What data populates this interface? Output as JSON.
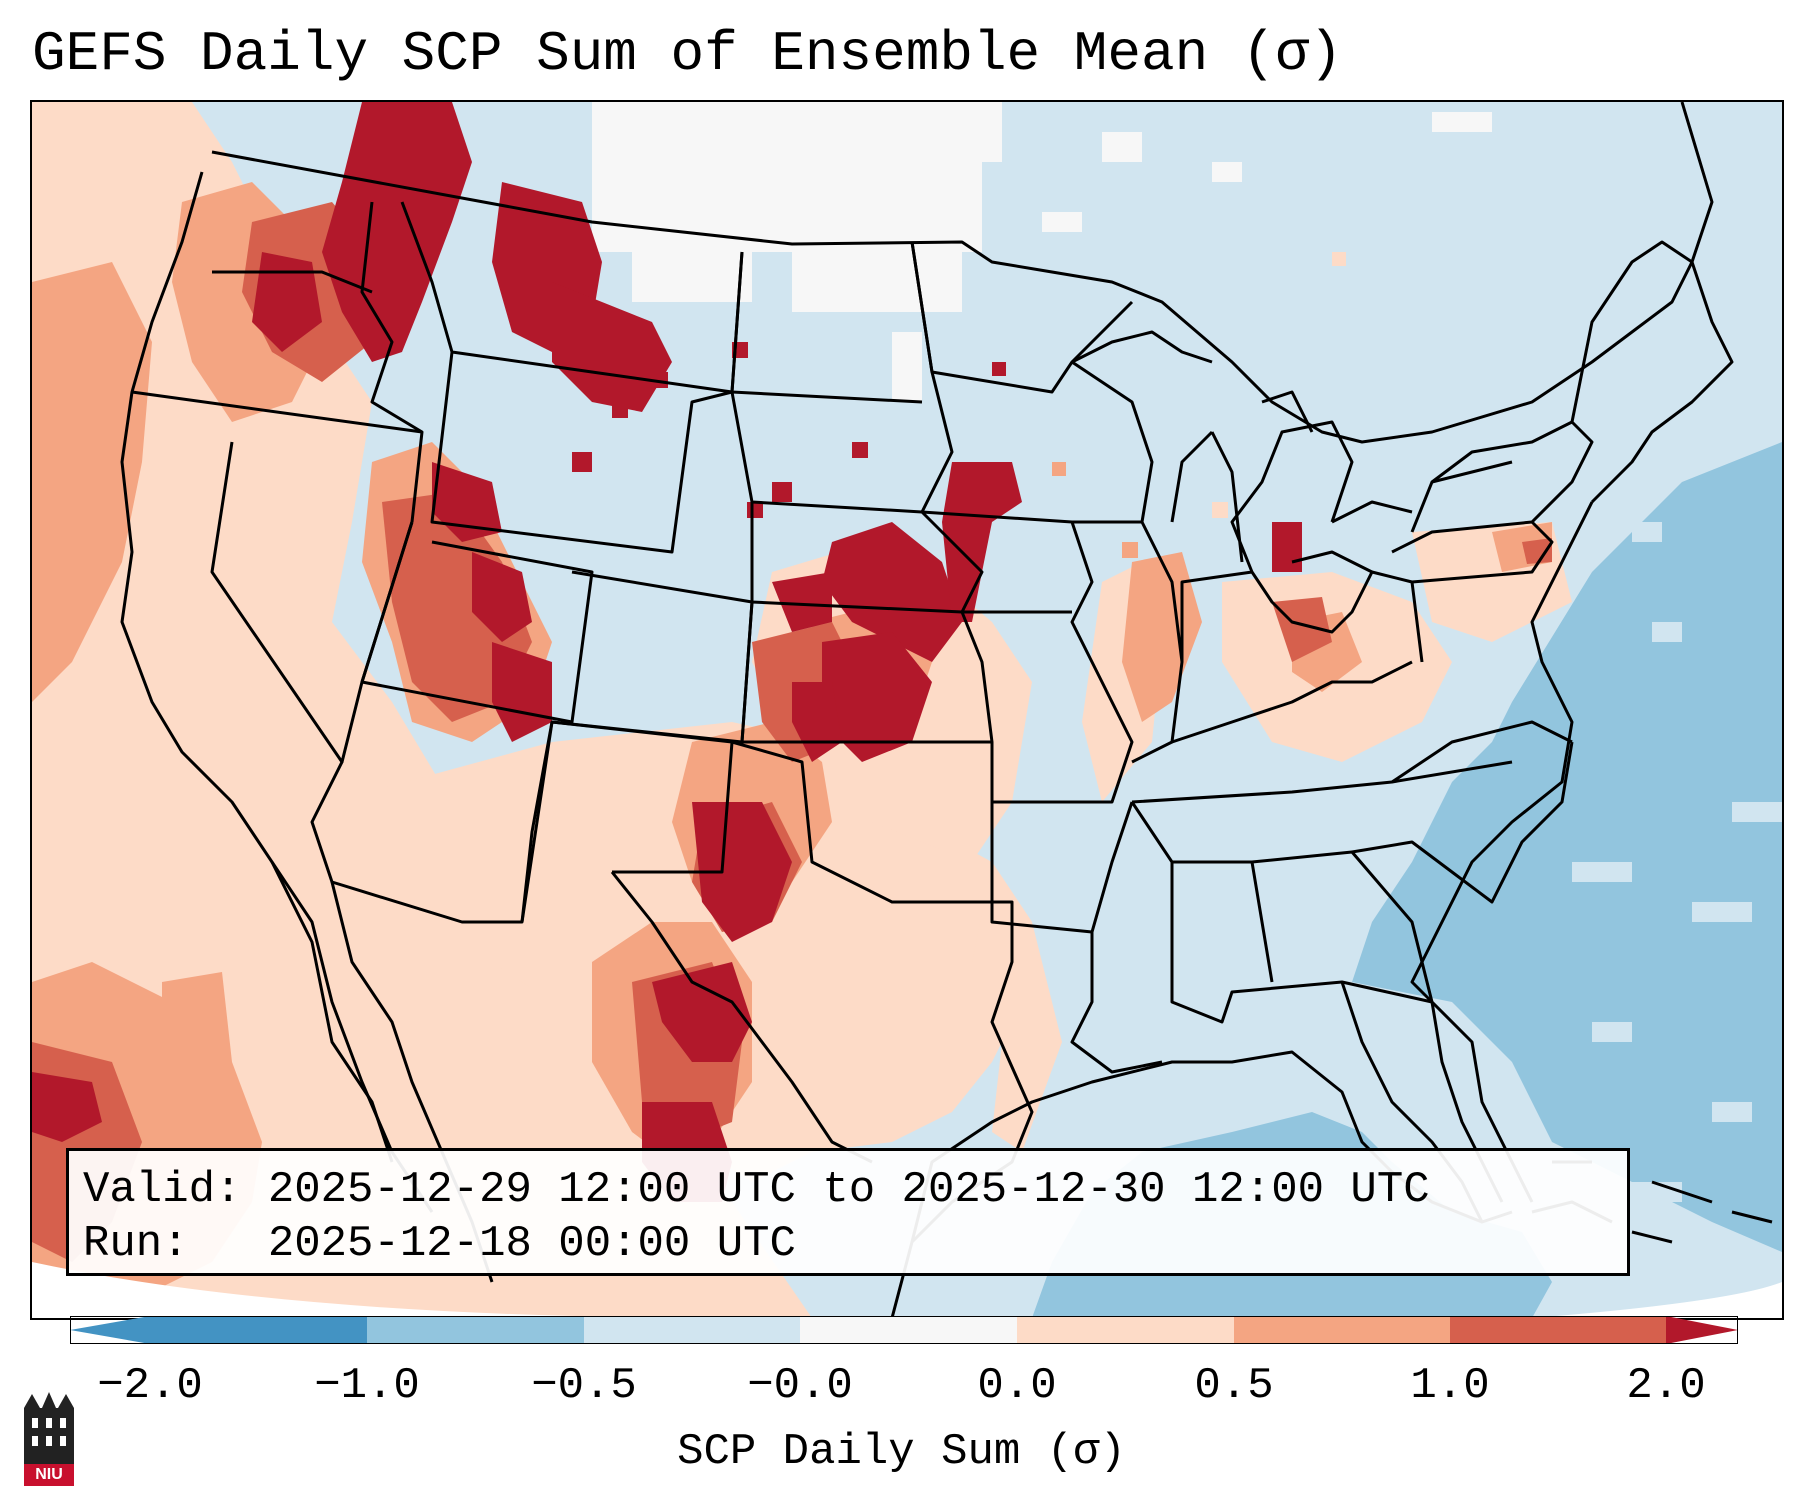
{
  "title": "GEFS Daily SCP Sum of Ensemble Mean (σ)",
  "valid_label": "Valid:",
  "valid_value": "2025-12-29 12:00 UTC to 2025-12-30 12:00 UTC",
  "run_label": "Run:",
  "run_value": "2025-12-18 00:00 UTC",
  "colorbar": {
    "label": "SCP Daily Sum (σ)",
    "ticks": [
      "−2.0",
      "−1.0",
      "−0.5",
      "−0.0",
      "0.0",
      "0.5",
      "1.0",
      "2.0"
    ],
    "colors": [
      "#4393c3",
      "#92c5de",
      "#d1e5f0",
      "#f7f7f7",
      "#fddbc7",
      "#f4a582",
      "#d6604d",
      "#b2182b"
    ]
  },
  "logo": {
    "text": "NIU",
    "icon": "niu-logo-icon"
  },
  "map_data": {
    "region": "Contiguous United States",
    "palette": {
      "bg": "#d1e5f0",
      "white": "#f7f7f7",
      "light_blue": "#92c5de",
      "salmon": "#fddbc7",
      "orange": "#f4a582",
      "red": "#d6604d",
      "dark_red": "#b2182b"
    }
  }
}
